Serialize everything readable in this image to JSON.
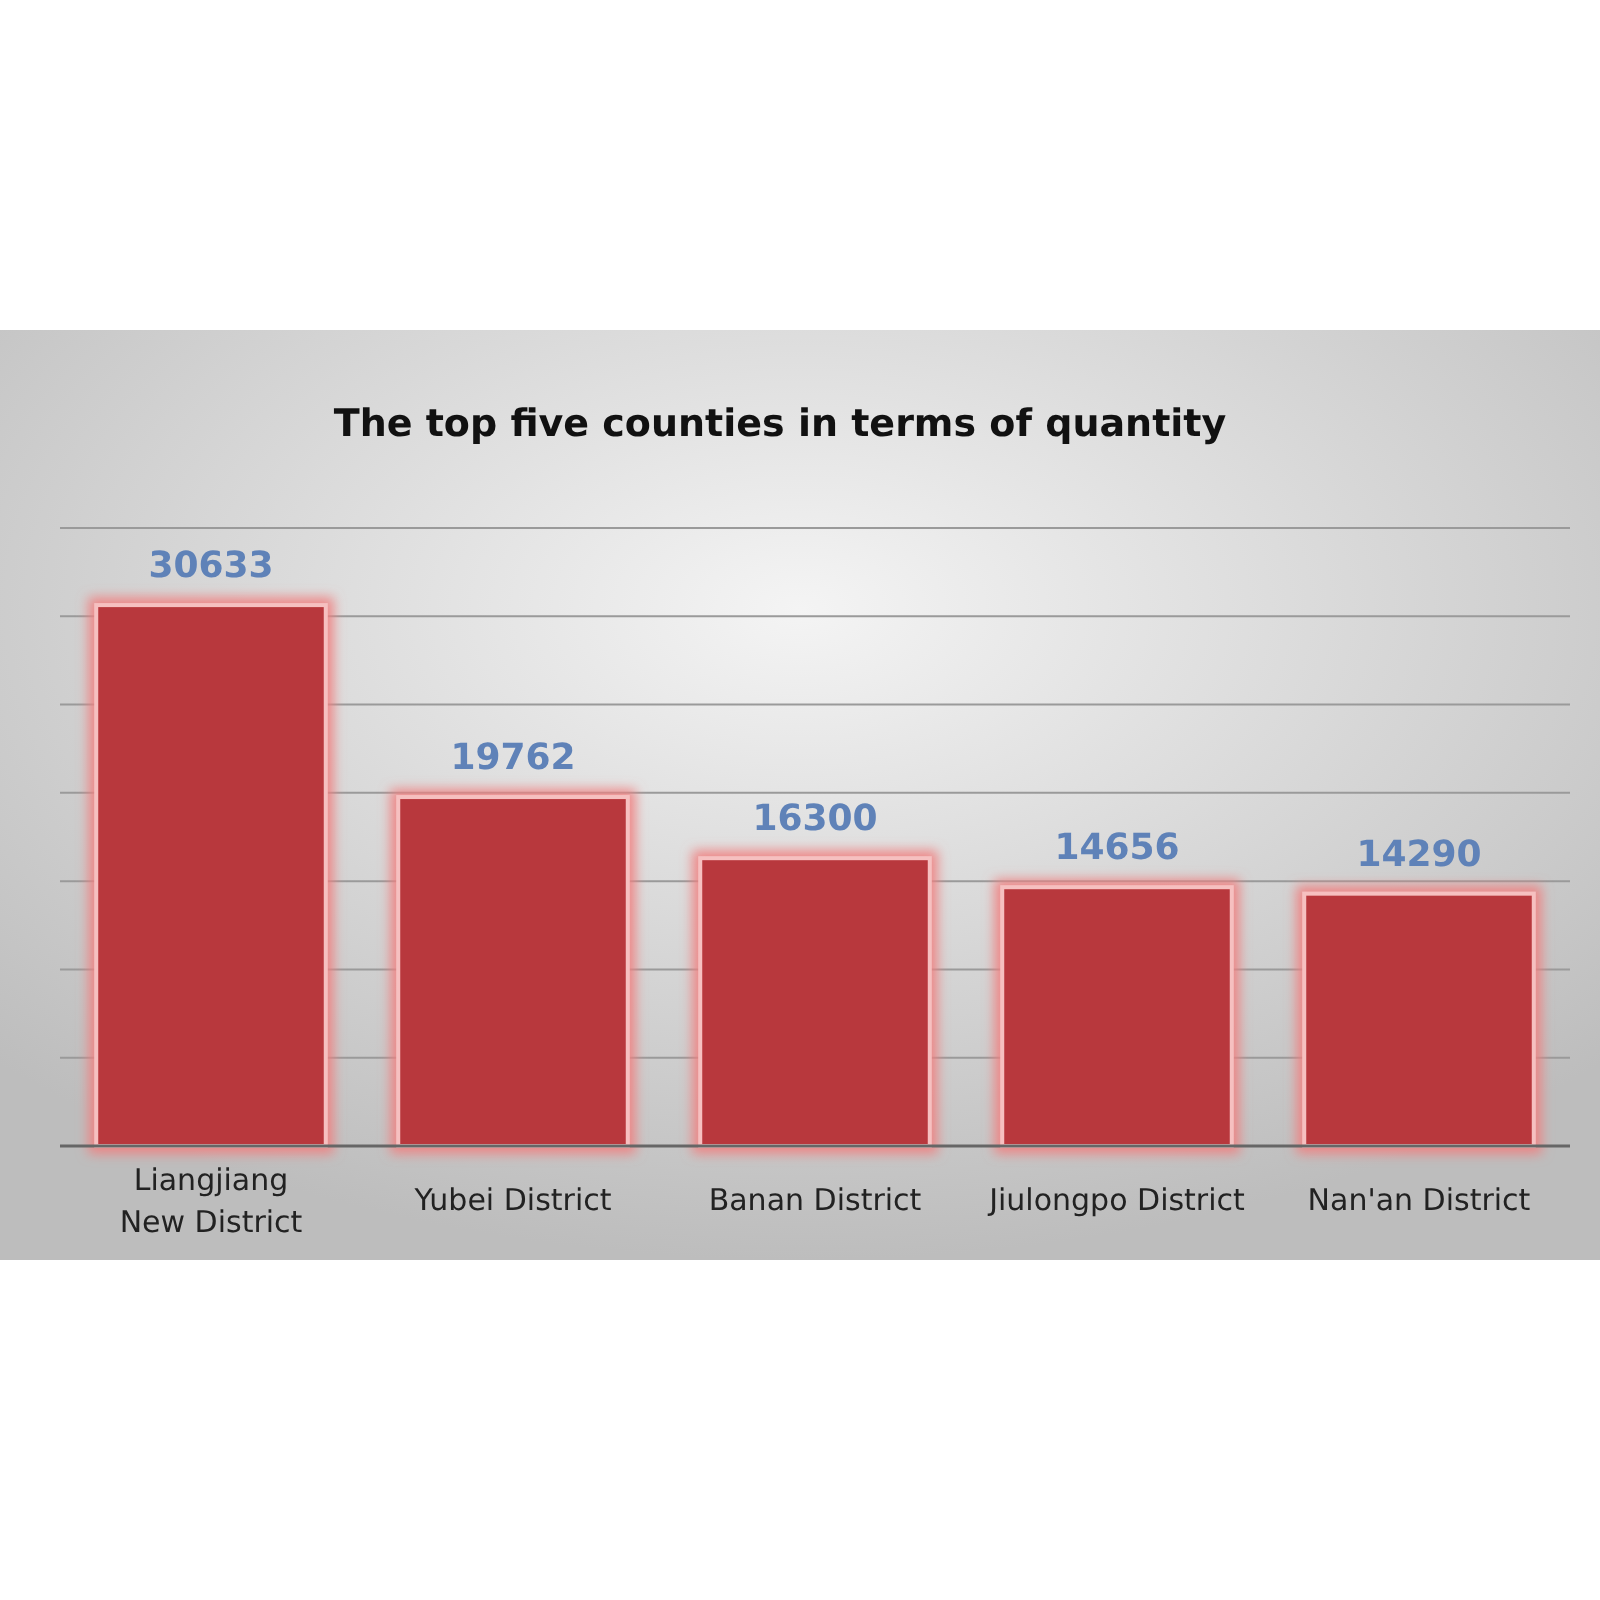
{
  "chart_data": {
    "type": "bar",
    "title": "The top five counties in terms of quantity",
    "categories": [
      "Liangjiang New District",
      "Yubei District",
      "Banan District",
      "Jiulongpo District",
      "Nan'an District"
    ],
    "values": [
      30633,
      19762,
      16300,
      14656,
      14290
    ],
    "color": "#b8383c",
    "data_labels": true,
    "ylim": [
      0,
      35000
    ],
    "yticks": [
      {
        "value": 0,
        "label": null
      },
      {
        "value": 5000,
        "label": null
      },
      {
        "value": 10000,
        "label": null
      },
      {
        "value": 15000,
        "label": null
      },
      {
        "value": 20000,
        "label": null
      },
      {
        "value": 25000,
        "label": null
      },
      {
        "value": 30000,
        "label": null
      },
      {
        "value": 35000,
        "label": null
      }
    ],
    "grid": "y",
    "tick_labels": "x"
  }
}
